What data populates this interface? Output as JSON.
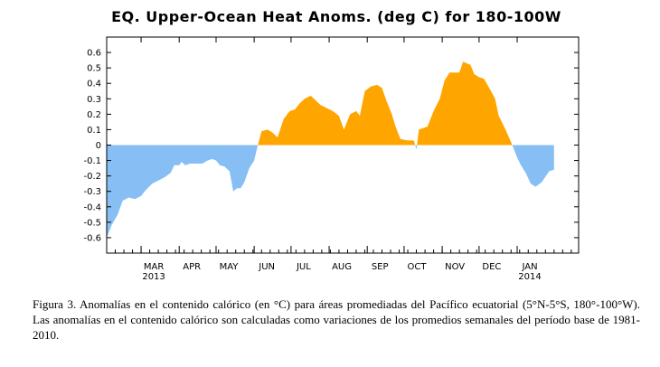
{
  "chart_data": {
    "type": "area",
    "title": "EQ. Upper-Ocean Heat Anoms. (deg C) for 180-100W",
    "xlabel": "",
    "ylabel": "",
    "ylim": [
      -0.7,
      0.7
    ],
    "grid": false,
    "yticks": [
      0.6,
      0.5,
      0.4,
      0.3,
      0.2,
      0.1,
      0,
      -0.1,
      -0.2,
      -0.3,
      -0.4,
      -0.5,
      -0.6
    ],
    "ytick_labels": [
      "0.6",
      "0.5",
      "0.4",
      "0.3",
      "0.2",
      "0.1",
      "0",
      "-0.1",
      "-0.2",
      "-0.3",
      "-0.4",
      "-0.5",
      "-0.6"
    ],
    "xlim": [
      "2013-02-01",
      "2014-02-20"
    ],
    "xticks": [
      {
        "date": "2013-03-01",
        "label": "MAR",
        "year": "2013"
      },
      {
        "date": "2013-04-01",
        "label": "APR",
        "year": ""
      },
      {
        "date": "2013-05-01",
        "label": "MAY",
        "year": ""
      },
      {
        "date": "2013-06-01",
        "label": "JUN",
        "year": ""
      },
      {
        "date": "2013-07-01",
        "label": "JUL",
        "year": ""
      },
      {
        "date": "2013-08-01",
        "label": "AUG",
        "year": ""
      },
      {
        "date": "2013-09-01",
        "label": "SEP",
        "year": ""
      },
      {
        "date": "2013-10-01",
        "label": "OCT",
        "year": ""
      },
      {
        "date": "2013-11-01",
        "label": "NOV",
        "year": ""
      },
      {
        "date": "2013-12-01",
        "label": "DEC",
        "year": ""
      },
      {
        "date": "2014-01-01",
        "label": "JAN",
        "year": "2014"
      }
    ],
    "colors": {
      "positive": "#ffa500",
      "negative": "#87bff5"
    },
    "series": [
      {
        "points": [
          [
            "2013-02-01",
            -0.6
          ],
          [
            "2013-02-05",
            -0.52
          ],
          [
            "2013-02-10",
            -0.45
          ],
          [
            "2013-02-14",
            -0.36
          ],
          [
            "2013-02-19",
            -0.34
          ],
          [
            "2013-02-24",
            -0.35
          ],
          [
            "2013-03-01",
            -0.33
          ],
          [
            "2013-03-05",
            -0.29
          ],
          [
            "2013-03-10",
            -0.25
          ],
          [
            "2013-03-15",
            -0.23
          ],
          [
            "2013-03-20",
            -0.21
          ],
          [
            "2013-03-25",
            -0.18
          ],
          [
            "2013-03-28",
            -0.13
          ],
          [
            "2013-04-01",
            -0.13
          ],
          [
            "2013-04-03",
            -0.11
          ],
          [
            "2013-04-06",
            -0.13
          ],
          [
            "2013-04-10",
            -0.12
          ],
          [
            "2013-04-15",
            -0.12
          ],
          [
            "2013-04-20",
            -0.12
          ],
          [
            "2013-04-24",
            -0.1
          ],
          [
            "2013-04-28",
            -0.09
          ],
          [
            "2013-05-01",
            -0.1
          ],
          [
            "2013-05-04",
            -0.13
          ],
          [
            "2013-05-08",
            -0.14
          ],
          [
            "2013-05-12",
            -0.17
          ],
          [
            "2013-05-15",
            -0.3
          ],
          [
            "2013-05-18",
            -0.28
          ],
          [
            "2013-05-21",
            -0.28
          ],
          [
            "2013-05-24",
            -0.24
          ],
          [
            "2013-05-28",
            -0.15
          ],
          [
            "2013-06-01",
            -0.1
          ],
          [
            "2013-06-04",
            0
          ],
          [
            "2013-06-07",
            0.09
          ],
          [
            "2013-06-12",
            0.1
          ],
          [
            "2013-06-16",
            0.08
          ],
          [
            "2013-06-20",
            0.05
          ],
          [
            "2013-06-25",
            0.17
          ],
          [
            "2013-06-30",
            0.22
          ],
          [
            "2013-07-04",
            0.23
          ],
          [
            "2013-07-08",
            0.27
          ],
          [
            "2013-07-12",
            0.3
          ],
          [
            "2013-07-17",
            0.32
          ],
          [
            "2013-07-21",
            0.29
          ],
          [
            "2013-07-25",
            0.26
          ],
          [
            "2013-07-30",
            0.24
          ],
          [
            "2013-08-04",
            0.22
          ],
          [
            "2013-08-09",
            0.19
          ],
          [
            "2013-08-13",
            0.1
          ],
          [
            "2013-08-18",
            0.2
          ],
          [
            "2013-08-23",
            0.22
          ],
          [
            "2013-08-26",
            0.19
          ],
          [
            "2013-08-30",
            0.35
          ],
          [
            "2013-09-04",
            0.38
          ],
          [
            "2013-09-09",
            0.39
          ],
          [
            "2013-09-13",
            0.37
          ],
          [
            "2013-09-17",
            0.28
          ],
          [
            "2013-09-21",
            0.2
          ],
          [
            "2013-09-24",
            0.12
          ],
          [
            "2013-09-28",
            0.04
          ],
          [
            "2013-10-04",
            0.03
          ],
          [
            "2013-10-09",
            0.03
          ],
          [
            "2013-10-11",
            -0.03
          ],
          [
            "2013-10-13",
            0.1
          ],
          [
            "2013-10-20",
            0.12
          ],
          [
            "2013-10-25",
            0.22
          ],
          [
            "2013-10-30",
            0.3
          ],
          [
            "2013-11-03",
            0.42
          ],
          [
            "2013-11-07",
            0.47
          ],
          [
            "2013-11-11",
            0.47
          ],
          [
            "2013-11-15",
            0.47
          ],
          [
            "2013-11-18",
            0.54
          ],
          [
            "2013-11-21",
            0.53
          ],
          [
            "2013-11-24",
            0.52
          ],
          [
            "2013-11-27",
            0.46
          ],
          [
            "2013-12-01",
            0.44
          ],
          [
            "2013-12-05",
            0.43
          ],
          [
            "2013-12-10",
            0.36
          ],
          [
            "2013-12-14",
            0.3
          ],
          [
            "2013-12-17",
            0.19
          ],
          [
            "2013-12-22",
            0.11
          ],
          [
            "2013-12-27",
            0.02
          ],
          [
            "2014-01-01",
            -0.08
          ],
          [
            "2014-01-04",
            -0.13
          ],
          [
            "2014-01-08",
            -0.18
          ],
          [
            "2014-01-12",
            -0.25
          ],
          [
            "2014-01-16",
            -0.27
          ],
          [
            "2014-01-21",
            -0.24
          ],
          [
            "2014-01-27",
            -0.17
          ],
          [
            "2014-01-31",
            -0.16
          ]
        ]
      }
    ]
  },
  "caption": {
    "text": "Figura 3. Anomalías en el contenido calórico (en °C) para áreas promediadas del Pacífico ecuatorial (5°N-5°S, 180°-100°W). Las anomalías en el contenido calórico son calculadas como variaciones de los promedios semanales del período base de 1981-2010."
  }
}
